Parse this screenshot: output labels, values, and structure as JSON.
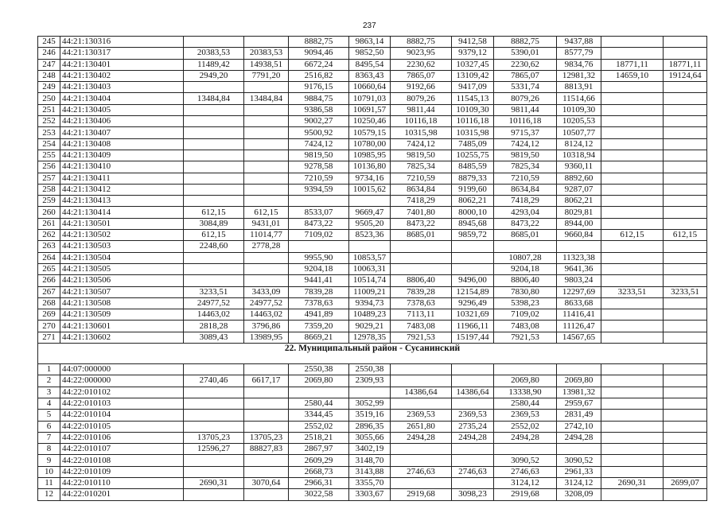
{
  "page_number": "237",
  "sections": [
    {
      "title": "",
      "rows": [
        [
          "245",
          "44:21:130316",
          "",
          "",
          "8882,75",
          "9863,14",
          "8882,75",
          "9412,58",
          "8882,75",
          "9437,88",
          "",
          ""
        ],
        [
          "246",
          "44:21:130317",
          "20383,53",
          "20383,53",
          "9094,46",
          "9852,50",
          "9023,95",
          "9379,12",
          "5390,01",
          "8577,79",
          "",
          ""
        ],
        [
          "247",
          "44:21:130401",
          "11489,42",
          "14938,51",
          "6672,24",
          "8495,54",
          "2230,62",
          "10327,45",
          "2230,62",
          "9834,76",
          "18771,11",
          "18771,11"
        ],
        [
          "248",
          "44:21:130402",
          "2949,20",
          "7791,20",
          "2516,82",
          "8363,43",
          "7865,07",
          "13109,42",
          "7865,07",
          "12981,32",
          "14659,10",
          "19124,64"
        ],
        [
          "249",
          "44:21:130403",
          "",
          "",
          "9176,15",
          "10660,64",
          "9192,66",
          "9417,09",
          "5331,74",
          "8813,91",
          "",
          ""
        ],
        [
          "250",
          "44:21:130404",
          "13484,84",
          "13484,84",
          "9884,75",
          "10791,03",
          "8079,26",
          "11545,13",
          "8079,26",
          "11514,66",
          "",
          ""
        ],
        [
          "251",
          "44:21:130405",
          "",
          "",
          "9386,58",
          "10691,57",
          "9811,44",
          "10109,30",
          "9811,44",
          "10109,30",
          "",
          ""
        ],
        [
          "252",
          "44:21:130406",
          "",
          "",
          "9002,27",
          "10250,46",
          "10116,18",
          "10116,18",
          "10116,18",
          "10205,53",
          "",
          ""
        ],
        [
          "253",
          "44:21:130407",
          "",
          "",
          "9500,92",
          "10579,15",
          "10315,98",
          "10315,98",
          "9715,37",
          "10507,77",
          "",
          ""
        ],
        [
          "254",
          "44:21:130408",
          "",
          "",
          "7424,12",
          "10780,00",
          "7424,12",
          "7485,09",
          "7424,12",
          "8124,12",
          "",
          ""
        ],
        [
          "255",
          "44:21:130409",
          "",
          "",
          "9819,50",
          "10985,95",
          "9819,50",
          "10255,75",
          "9819,50",
          "10318,94",
          "",
          ""
        ],
        [
          "256",
          "44:21:130410",
          "",
          "",
          "9278,58",
          "10136,80",
          "7825,34",
          "8485,59",
          "7825,34",
          "9360,11",
          "",
          ""
        ],
        [
          "257",
          "44:21:130411",
          "",
          "",
          "7210,59",
          "9734,16",
          "7210,59",
          "8879,33",
          "7210,59",
          "8892,60",
          "",
          ""
        ],
        [
          "258",
          "44:21:130412",
          "",
          "",
          "9394,59",
          "10015,62",
          "8634,84",
          "9199,60",
          "8634,84",
          "9287,07",
          "",
          ""
        ],
        [
          "259",
          "44:21:130413",
          "",
          "",
          "",
          "",
          "7418,29",
          "8062,21",
          "7418,29",
          "8062,21",
          "",
          ""
        ],
        [
          "260",
          "44:21:130414",
          "612,15",
          "612,15",
          "8533,07",
          "9669,47",
          "7401,80",
          "8000,10",
          "4293,04",
          "8029,81",
          "",
          ""
        ],
        [
          "261",
          "44:21:130501",
          "3084,89",
          "9431,01",
          "8473,22",
          "9505,20",
          "8473,22",
          "8945,68",
          "8473,22",
          "8944,00",
          "",
          ""
        ],
        [
          "262",
          "44:21:130502",
          "612,15",
          "11014,77",
          "7109,02",
          "8523,36",
          "8685,01",
          "9859,72",
          "8685,01",
          "9660,84",
          "612,15",
          "612,15"
        ],
        [
          "263",
          "44:21:130503",
          "2248,60",
          "2778,28",
          "",
          "",
          "",
          "",
          "",
          "",
          "",
          ""
        ],
        [
          "264",
          "44:21:130504",
          "",
          "",
          "9955,90",
          "10853,57",
          "",
          "",
          "10807,28",
          "11323,38",
          "",
          ""
        ],
        [
          "265",
          "44:21:130505",
          "",
          "",
          "9204,18",
          "10063,31",
          "",
          "",
          "9204,18",
          "9641,36",
          "",
          ""
        ],
        [
          "266",
          "44:21:130506",
          "",
          "",
          "9441,41",
          "10514,74",
          "8806,40",
          "9496,00",
          "8806,40",
          "9803,24",
          "",
          ""
        ],
        [
          "267",
          "44:21:130507",
          "3233,51",
          "3433,09",
          "7839,28",
          "11009,21",
          "7839,28",
          "12154,89",
          "7830,80",
          "12297,69",
          "3233,51",
          "3233,51"
        ],
        [
          "268",
          "44:21:130508",
          "24977,52",
          "24977,52",
          "7378,63",
          "9394,73",
          "7378,63",
          "9296,49",
          "5398,23",
          "8633,68",
          "",
          ""
        ],
        [
          "269",
          "44:21:130509",
          "14463,02",
          "14463,02",
          "4941,89",
          "10489,23",
          "7113,11",
          "10321,69",
          "7109,02",
          "11416,41",
          "",
          ""
        ],
        [
          "270",
          "44:21:130601",
          "2818,28",
          "3796,86",
          "7359,20",
          "9029,21",
          "7483,08",
          "11966,11",
          "7483,08",
          "11126,47",
          "",
          ""
        ],
        [
          "271",
          "44:21:130602",
          "3089,43",
          "13989,95",
          "8669,21",
          "12978,35",
          "7921,53",
          "15197,44",
          "7921,53",
          "14567,65",
          "",
          ""
        ]
      ]
    },
    {
      "title": "22. Муниципальный район - Сусанинский",
      "rows": [
        [
          "1",
          "44:07:000000",
          "",
          "",
          "2550,38",
          "2550,38",
          "",
          "",
          "",
          "",
          "",
          ""
        ],
        [
          "2",
          "44:22:000000",
          "2740,46",
          "6617,17",
          "2069,80",
          "2309,93",
          "",
          "",
          "2069,80",
          "2069,80",
          "",
          ""
        ],
        [
          "3",
          "44:22:010102",
          "",
          "",
          "",
          "",
          "14386,64",
          "14386,64",
          "13338,90",
          "13981,32",
          "",
          ""
        ],
        [
          "4",
          "44:22:010103",
          "",
          "",
          "2580,44",
          "3052,99",
          "",
          "",
          "2580,44",
          "2959,67",
          "",
          ""
        ],
        [
          "5",
          "44:22:010104",
          "",
          "",
          "3344,45",
          "3519,16",
          "2369,53",
          "2369,53",
          "2369,53",
          "2831,49",
          "",
          ""
        ],
        [
          "6",
          "44:22:010105",
          "",
          "",
          "2552,02",
          "2896,35",
          "2651,80",
          "2735,24",
          "2552,02",
          "2742,10",
          "",
          ""
        ],
        [
          "7",
          "44:22:010106",
          "13705,23",
          "13705,23",
          "2518,21",
          "3055,66",
          "2494,28",
          "2494,28",
          "2494,28",
          "2494,28",
          "",
          ""
        ],
        [
          "8",
          "44:22:010107",
          "12596,27",
          "88827,83",
          "2867,97",
          "3402,19",
          "",
          "",
          "",
          "",
          "",
          ""
        ],
        [
          "9",
          "44:22:010108",
          "",
          "",
          "2609,29",
          "3148,70",
          "",
          "",
          "3090,52",
          "3090,52",
          "",
          ""
        ],
        [
          "10",
          "44:22:010109",
          "",
          "",
          "2668,73",
          "3143,88",
          "2746,63",
          "2746,63",
          "2746,63",
          "2961,33",
          "",
          ""
        ],
        [
          "11",
          "44:22:010110",
          "2690,31",
          "3070,64",
          "2966,31",
          "3355,70",
          "",
          "",
          "3124,12",
          "3124,12",
          "2690,31",
          "2699,07"
        ],
        [
          "12",
          "44:22:010201",
          "",
          "",
          "3022,58",
          "3303,67",
          "2919,68",
          "3098,23",
          "2919,68",
          "3208,09",
          "",
          ""
        ]
      ]
    }
  ]
}
